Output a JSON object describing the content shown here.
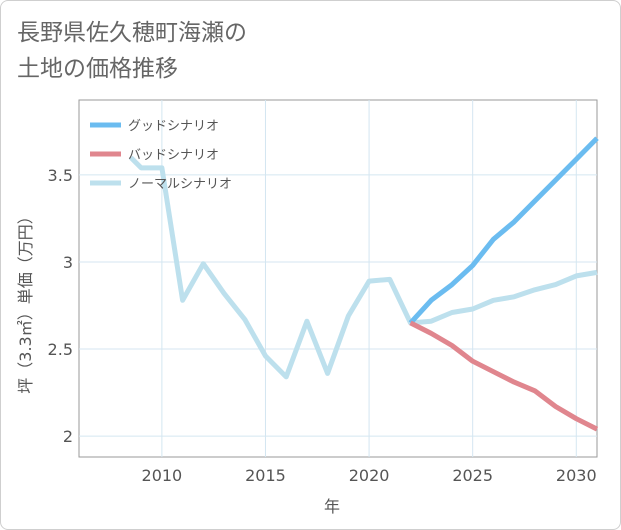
{
  "title": {
    "line1": "長野県佐久穂町海瀬の",
    "line2": "土地の価格推移"
  },
  "chart_data": {
    "type": "line",
    "xlabel": "年",
    "ylabel": "坪（3.3㎡）単価（万円）",
    "xlim": [
      2006,
      2031
    ],
    "ylim": [
      1.88,
      3.93
    ],
    "x_ticks": [
      2010,
      2015,
      2020,
      2025,
      2030
    ],
    "y_ticks": [
      2,
      2.5,
      3,
      3.5
    ],
    "x_tick_labels": [
      "2010",
      "2015",
      "2020",
      "2025",
      "2030"
    ],
    "y_tick_labels": [
      "2",
      "2.5",
      "3",
      "3.5"
    ],
    "grid": true,
    "legend_position": "top-left",
    "series": [
      {
        "name": "グッドシナリオ",
        "color": "#6bbcf0",
        "x": [
          2022,
          2023,
          2024,
          2025,
          2026,
          2027,
          2028,
          2029,
          2030,
          2031
        ],
        "y": [
          2.65,
          2.78,
          2.87,
          2.98,
          3.13,
          3.23,
          3.35,
          3.47,
          3.59,
          3.71
        ]
      },
      {
        "name": "バッドシナリオ",
        "color": "#e0868e",
        "x": [
          2022,
          2023,
          2024,
          2025,
          2026,
          2027,
          2028,
          2029,
          2030,
          2031
        ],
        "y": [
          2.65,
          2.59,
          2.52,
          2.43,
          2.37,
          2.31,
          2.26,
          2.17,
          2.1,
          2.04
        ]
      },
      {
        "name": "ノーマルシナリオ",
        "color": "#bde0ed",
        "x": [
          2008.5,
          2009,
          2010,
          2011,
          2012,
          2013,
          2014,
          2015,
          2016,
          2017,
          2018,
          2019,
          2020,
          2021,
          2022,
          2023,
          2024,
          2025,
          2026,
          2027,
          2028,
          2029,
          2030,
          2031
        ],
        "y": [
          3.6,
          3.54,
          3.54,
          2.78,
          2.99,
          2.82,
          2.67,
          2.46,
          2.34,
          2.66,
          2.36,
          2.69,
          2.89,
          2.9,
          2.65,
          2.66,
          2.71,
          2.73,
          2.78,
          2.8,
          2.84,
          2.87,
          2.92,
          2.94
        ]
      }
    ]
  }
}
